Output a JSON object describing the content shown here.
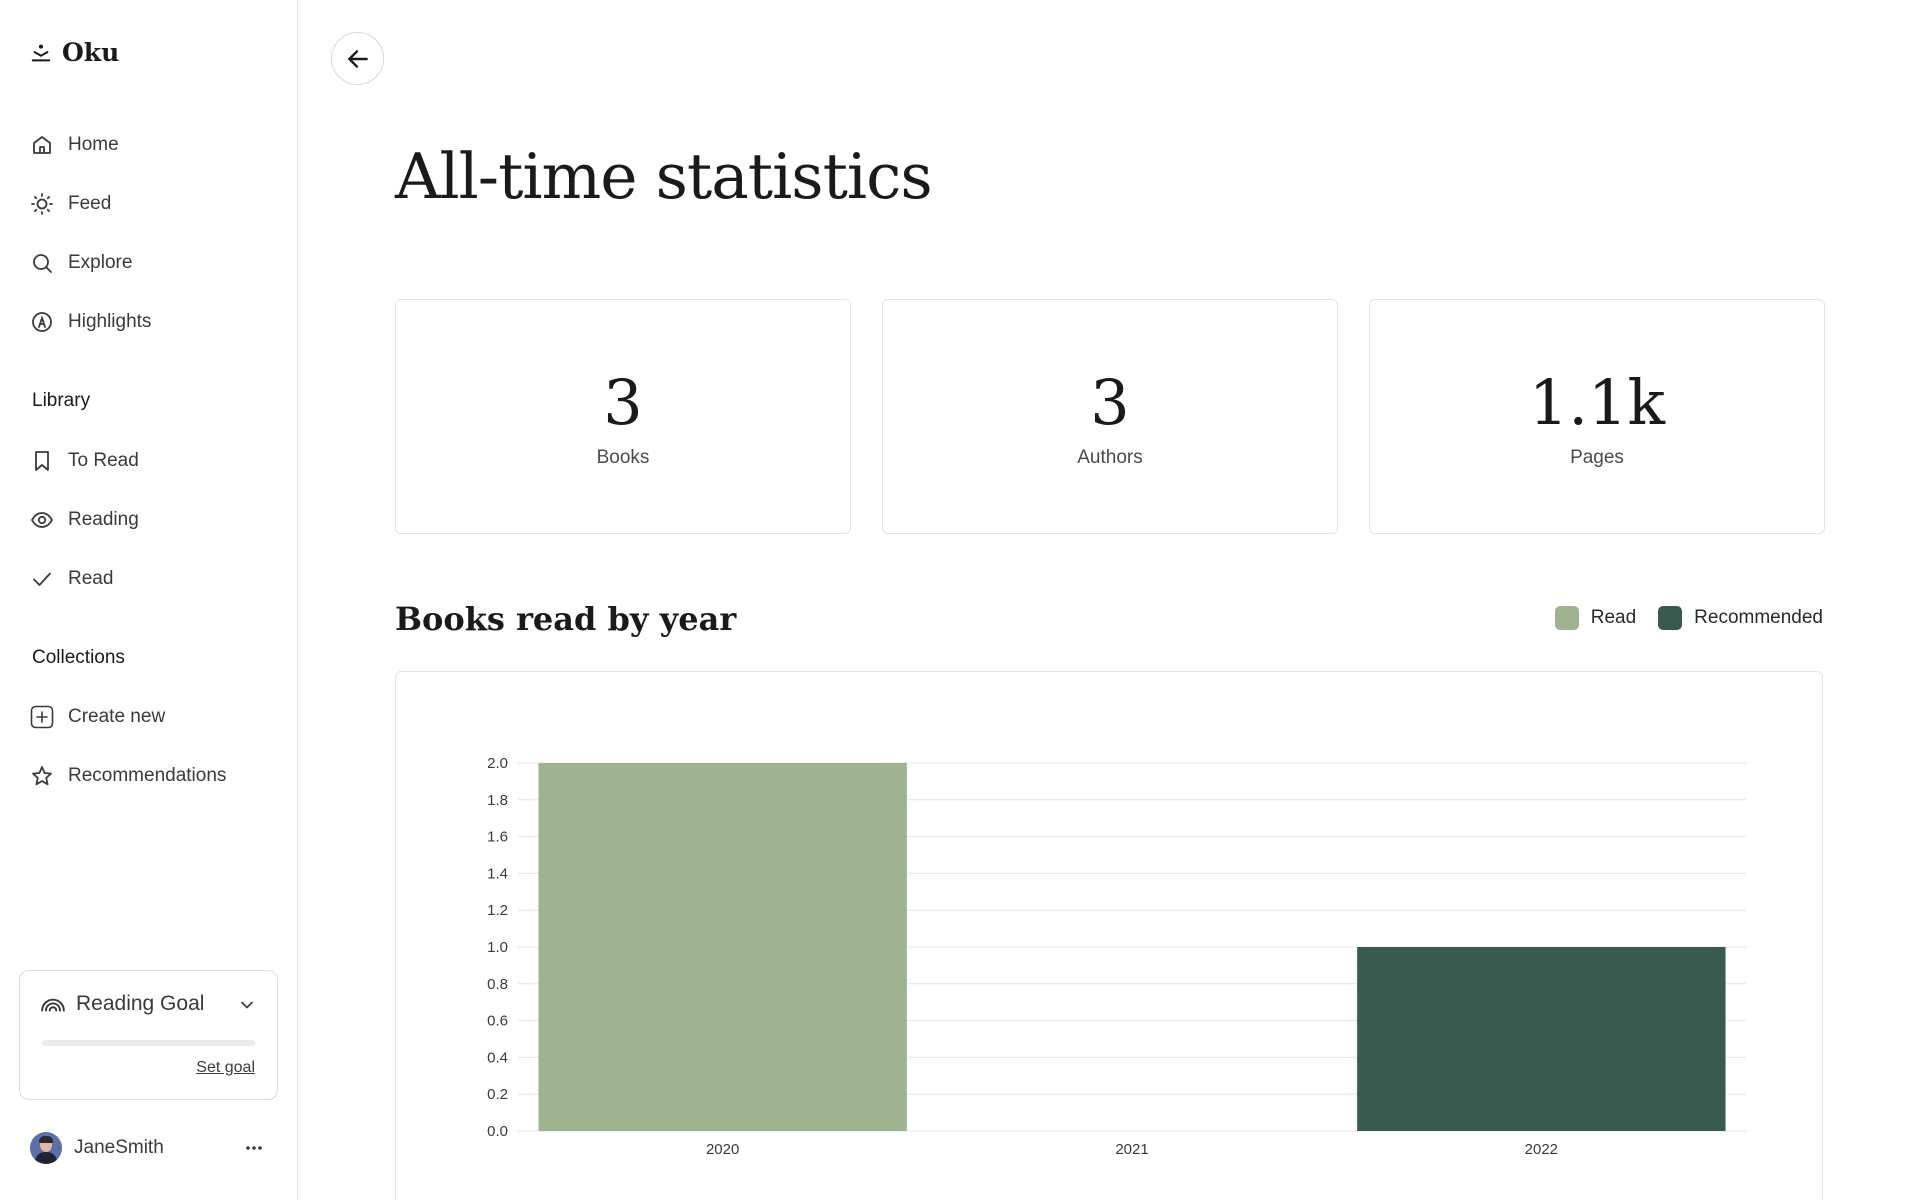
{
  "app": {
    "name": "Oku"
  },
  "nav": {
    "items": [
      {
        "id": "home",
        "label": "Home",
        "icon": "home-icon"
      },
      {
        "id": "feed",
        "label": "Feed",
        "icon": "sun-icon"
      },
      {
        "id": "explore",
        "label": "Explore",
        "icon": "search-icon"
      },
      {
        "id": "highlights",
        "label": "Highlights",
        "icon": "highlight-icon"
      }
    ]
  },
  "library": {
    "title": "Library",
    "items": [
      {
        "id": "to-read",
        "label": "To Read",
        "icon": "bookmark-icon"
      },
      {
        "id": "reading",
        "label": "Reading",
        "icon": "eye-icon"
      },
      {
        "id": "read",
        "label": "Read",
        "icon": "check-icon"
      }
    ]
  },
  "collections": {
    "title": "Collections",
    "items": [
      {
        "id": "create-new",
        "label": "Create new",
        "icon": "plus-square-icon"
      },
      {
        "id": "recommendations",
        "label": "Recommendations",
        "icon": "star-icon"
      }
    ]
  },
  "reading_goal": {
    "title": "Reading Goal",
    "progress": 0,
    "link_label": "Set goal"
  },
  "user": {
    "name": "JaneSmith"
  },
  "main": {
    "title": "All-time statistics",
    "stats": [
      {
        "value": "3",
        "label": "Books"
      },
      {
        "value": "3",
        "label": "Authors"
      },
      {
        "value": "1.1k",
        "label": "Pages"
      }
    ],
    "chart_title": "Books read by year"
  },
  "colors": {
    "read": "#9eb491",
    "recommended": "#385a4f",
    "grid": "#e6e6e6"
  },
  "chart_data": {
    "type": "bar",
    "title": "Books read by year",
    "categories": [
      "2020",
      "2021",
      "2022"
    ],
    "series": [
      {
        "name": "Read",
        "values": [
          2,
          0,
          0
        ],
        "color": "#9eb491"
      },
      {
        "name": "Recommended",
        "values": [
          0,
          0,
          1
        ],
        "color": "#385a4f"
      }
    ],
    "ylim": [
      0,
      2
    ],
    "yticks": [
      "0.0",
      "0.2",
      "0.4",
      "0.6",
      "0.8",
      "1.0",
      "1.2",
      "1.4",
      "1.6",
      "1.8",
      "2.0"
    ],
    "grid": true,
    "legend": "top-right"
  }
}
